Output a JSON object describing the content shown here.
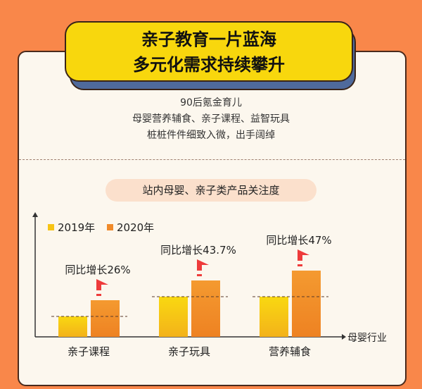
{
  "title": {
    "line1": "亲子教育一片蓝海",
    "line2": "多元化需求持续攀升"
  },
  "intro": [
    "90后氪金育儿",
    "母婴营养辅食、亲子课程、益智玩具",
    "桩桩件件细致入微，出手阔绰"
  ],
  "section_label": "站内母婴、亲子类产品关注度",
  "colors": {
    "background": "#F9874A",
    "card": "#FCF7EE",
    "title_bg": "#F8D70D",
    "title_shadow": "#4F6A9C",
    "bar_2019": "#F7C415",
    "bar_2020": "#F08A2A",
    "arrow": "#EE3B3B"
  },
  "chart_data": {
    "type": "bar",
    "title": "",
    "xlabel": "母婴行业",
    "ylabel": "",
    "categories": [
      "亲子课程",
      "亲子玩具",
      "营养辅食"
    ],
    "series": [
      {
        "name": "2019年",
        "values": [
          29,
          57,
          57
        ]
      },
      {
        "name": "2020年",
        "values": [
          52,
          80,
          94
        ]
      }
    ],
    "annotations": [
      "同比增长26%",
      "同比增长43.7%",
      "同比增长47%"
    ],
    "ylim": [
      0,
      170
    ],
    "grid": false,
    "legend": "top-left",
    "y_ticks": "none (relative scale)"
  }
}
